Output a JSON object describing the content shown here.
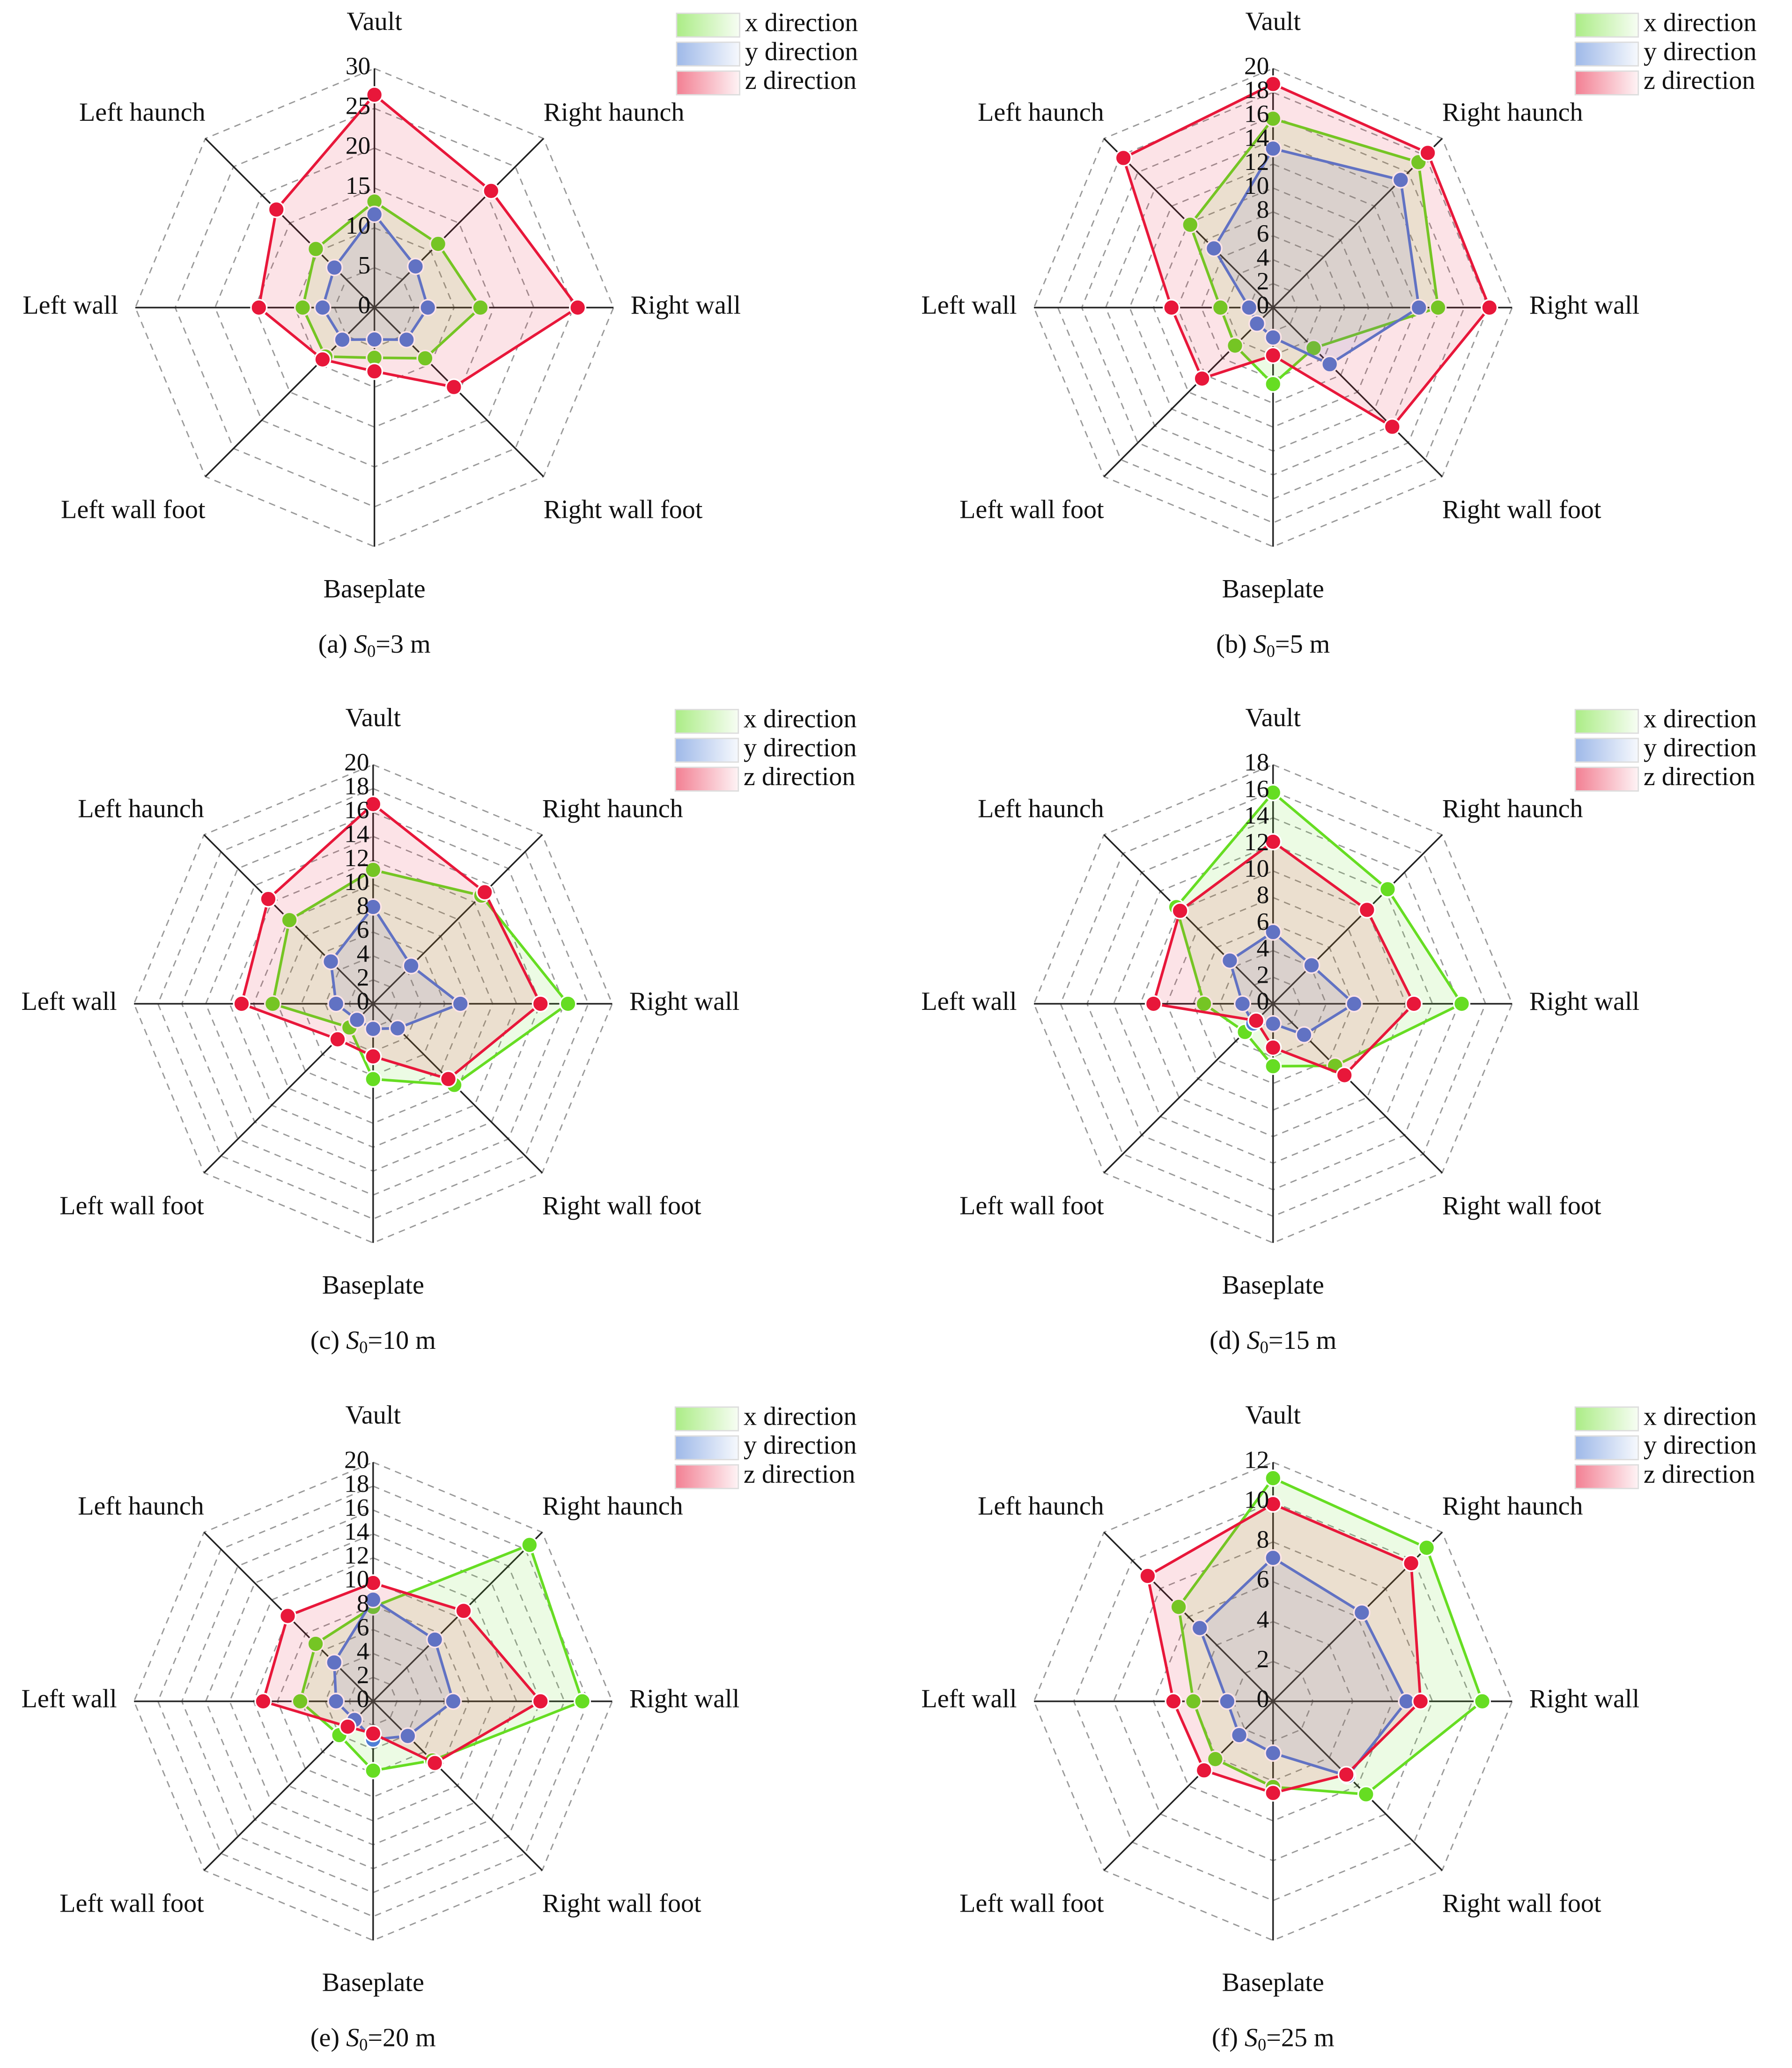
{
  "chart_data": [
    {
      "type": "radar",
      "caption": {
        "panel": "(a)",
        "symbol": "S",
        "subscript": "0",
        "condition": "=3 m"
      },
      "categories": [
        "Vault",
        "Right haunch",
        "Right wall",
        "Right wall foot",
        "Baseplate",
        "Left wall foot",
        "Left wall",
        "Left haunch"
      ],
      "rlim": [
        0,
        30
      ],
      "rticks": [
        0,
        5,
        10,
        15,
        20,
        25,
        30
      ],
      "grid": true,
      "series": [
        {
          "name": "x direction",
          "color": "#66dd22",
          "values": [
            13.3,
            11.3,
            13.3,
            9,
            6.3,
            8.7,
            9,
            10.4
          ]
        },
        {
          "name": "y direction",
          "color": "#4f7fd6",
          "values": [
            11.7,
            7.3,
            6.7,
            5.7,
            4,
            5.7,
            6.5,
            7.1
          ]
        },
        {
          "name": "z direction",
          "color": "#e8173a",
          "values": [
            26.7,
            20.7,
            25.5,
            14.1,
            8,
            9.2,
            14.5,
            17.4
          ]
        }
      ]
    },
    {
      "type": "radar",
      "caption": {
        "panel": "(b)",
        "symbol": "S",
        "subscript": "0",
        "condition": "=5 m"
      },
      "categories": [
        "Vault",
        "Right haunch",
        "Right wall",
        "Right wall foot",
        "Baseplate",
        "Left wall foot",
        "Left wall",
        "Left haunch"
      ],
      "rlim": [
        0,
        20
      ],
      "rticks": [
        0,
        2,
        4,
        6,
        8,
        10,
        12,
        14,
        16,
        18,
        20
      ],
      "grid": true,
      "series": [
        {
          "name": "x direction",
          "color": "#66dd22",
          "values": [
            15.8,
            17.2,
            13.8,
            4.8,
            6.4,
            4.5,
            4.4,
            9.8
          ]
        },
        {
          "name": "y direction",
          "color": "#4f7fd6",
          "values": [
            13.3,
            15.1,
            12.2,
            6.7,
            2.5,
            1.9,
            2,
            7
          ]
        },
        {
          "name": "z direction",
          "color": "#e8173a",
          "values": [
            18.7,
            18.3,
            18.1,
            14.1,
            4,
            8.4,
            8.5,
            17.7
          ]
        }
      ]
    },
    {
      "type": "radar",
      "caption": {
        "panel": "(c)",
        "symbol": "S",
        "subscript": "0",
        "condition": "=10 m"
      },
      "categories": [
        "Vault",
        "Right haunch",
        "Right wall",
        "Right wall foot",
        "Baseplate",
        "Left wall foot",
        "Left wall",
        "Left haunch"
      ],
      "rlim": [
        0,
        20
      ],
      "rticks": [
        0,
        2,
        4,
        6,
        8,
        10,
        12,
        14,
        16,
        18,
        20
      ],
      "grid": true,
      "series": [
        {
          "name": "x direction",
          "color": "#66dd22",
          "values": [
            11.2,
            12.8,
            16.3,
            9.6,
            6.3,
            2.8,
            8.4,
            9.9
          ]
        },
        {
          "name": "y direction",
          "color": "#4f7fd6",
          "values": [
            8.1,
            4.5,
            7.3,
            2.9,
            2.1,
            1.9,
            3.1,
            5
          ]
        },
        {
          "name": "z direction",
          "color": "#e8173a",
          "values": [
            16.7,
            13.2,
            14,
            8.9,
            4.4,
            4.2,
            11,
            12.4
          ]
        }
      ]
    },
    {
      "type": "radar",
      "caption": {
        "panel": "(d)",
        "symbol": "S",
        "subscript": "0",
        "condition": "=15 m"
      },
      "categories": [
        "Vault",
        "Right haunch",
        "Right wall",
        "Right wall foot",
        "Baseplate",
        "Left wall foot",
        "Left wall",
        "Left haunch"
      ],
      "rlim": [
        0,
        18
      ],
      "rticks": [
        0,
        2,
        4,
        6,
        8,
        10,
        12,
        14,
        16,
        18
      ],
      "grid": true,
      "series": [
        {
          "name": "x direction",
          "color": "#66dd22",
          "values": [
            15.9,
            12.2,
            14.2,
            6.6,
            4.7,
            3,
            5.2,
            10.3
          ]
        },
        {
          "name": "y direction",
          "color": "#4f7fd6",
          "values": [
            5.4,
            4.1,
            6.1,
            3.3,
            1.5,
            2.1,
            2.3,
            4.6
          ]
        },
        {
          "name": "z direction",
          "color": "#e8173a",
          "values": [
            12.2,
            10,
            10.6,
            7.6,
            3.3,
            1.8,
            9,
            9.9
          ]
        }
      ]
    },
    {
      "type": "radar",
      "caption": {
        "panel": "(e)",
        "symbol": "S",
        "subscript": "0",
        "condition": "=20 m"
      },
      "categories": [
        "Vault",
        "Right haunch",
        "Right wall",
        "Right wall foot",
        "Baseplate",
        "Left wall foot",
        "Left wall",
        "Left haunch"
      ],
      "rlim": [
        0,
        20
      ],
      "rticks": [
        0,
        2,
        4,
        6,
        8,
        10,
        12,
        14,
        16,
        18,
        20
      ],
      "grid": true,
      "series": [
        {
          "name": "x direction",
          "color": "#66dd22",
          "values": [
            7.9,
            18.5,
            17.5,
            7,
            5.8,
            4,
            6.1,
            6.8
          ]
        },
        {
          "name": "y direction",
          "color": "#4f7fd6",
          "values": [
            8.5,
            7.3,
            6.7,
            4.1,
            3.2,
            2.2,
            3.1,
            4.6
          ]
        },
        {
          "name": "z direction",
          "color": "#e8173a",
          "values": [
            9.9,
            10.7,
            14,
            7.3,
            2.7,
            3,
            9.2,
            10.1
          ]
        }
      ]
    },
    {
      "type": "radar",
      "caption": {
        "panel": "(f)",
        "symbol": "S",
        "subscript": "0",
        "condition": "=25 m"
      },
      "categories": [
        "Vault",
        "Right haunch",
        "Right wall",
        "Right wall foot",
        "Baseplate",
        "Left wall foot",
        "Left wall",
        "Left haunch"
      ],
      "rlim": [
        0,
        12
      ],
      "rticks": [
        0,
        2,
        4,
        6,
        8,
        10,
        12
      ],
      "grid": true,
      "series": [
        {
          "name": "x direction",
          "color": "#66dd22",
          "values": [
            11.2,
            10.9,
            10.5,
            6.6,
            4.3,
            4.1,
            4,
            6.7
          ]
        },
        {
          "name": "y direction",
          "color": "#4f7fd6",
          "values": [
            7.2,
            6.3,
            6.7,
            5.3,
            2.6,
            2.4,
            2.3,
            5.2
          ]
        },
        {
          "name": "z direction",
          "color": "#e8173a",
          "values": [
            9.9,
            9.8,
            7.4,
            5.2,
            4.6,
            4.9,
            5,
            8.9
          ]
        }
      ]
    }
  ]
}
